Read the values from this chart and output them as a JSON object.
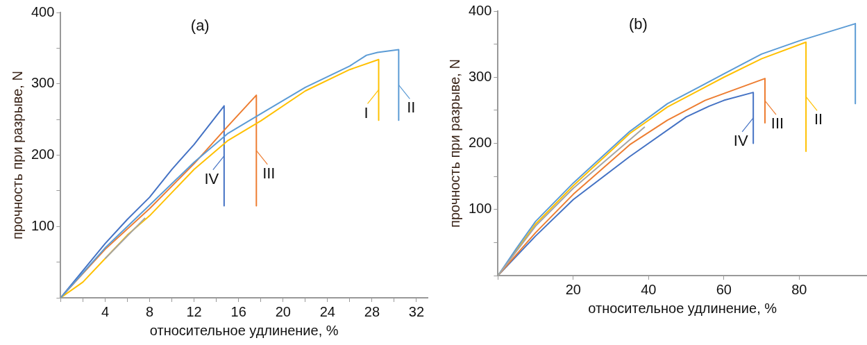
{
  "chart_data": [
    {
      "type": "line",
      "title": "(a)",
      "xlabel": "относительное удлинение, %",
      "ylabel": "прочность при разрыве, N",
      "xlim": [
        0,
        33
      ],
      "ylim": [
        0,
        400
      ],
      "xticks": [
        {
          "value": 0,
          "label": null
        },
        {
          "value": 2,
          "label": null
        },
        4,
        {
          "value": 6,
          "label": null
        },
        8,
        {
          "value": 10,
          "label": null
        },
        12,
        {
          "value": 14,
          "label": null
        },
        16,
        {
          "value": 18,
          "label": null
        },
        20,
        {
          "value": 22,
          "label": null
        },
        24,
        {
          "value": 26,
          "label": null
        },
        28,
        {
          "value": 30,
          "label": null
        },
        32
      ],
      "yticks": [
        {
          "value": 0,
          "label": null
        },
        {
          "value": 50,
          "label": null
        },
        100,
        {
          "value": 150,
          "label": null
        },
        200,
        {
          "value": 250,
          "label": null
        },
        300,
        {
          "value": 350,
          "label": null
        },
        400
      ],
      "grid": false,
      "legend": "right",
      "marker": "none",
      "line_style": "solid",
      "series": [
        {
          "name": "IV",
          "color": "#4472c4",
          "x": [
            0,
            2,
            4,
            6,
            8,
            10,
            12,
            14.7,
            14.7
          ],
          "values": [
            0,
            38,
            76,
            110,
            141,
            180,
            215,
            269,
            129
          ]
        },
        {
          "name": "III",
          "color": "#ed7d31",
          "x": [
            0,
            4,
            8,
            12,
            15,
            17.6,
            17.6
          ],
          "values": [
            0,
            68,
            125,
            188,
            240,
            284,
            129
          ]
        },
        {
          "name": "I",
          "color": "#ffc000",
          "x": [
            0,
            2,
            4,
            6,
            8,
            12,
            15,
            18,
            22,
            26,
            28.6,
            28.6
          ],
          "values": [
            0,
            22,
            55,
            88,
            115,
            180,
            220,
            248,
            290,
            320,
            334,
            249
          ]
        },
        {
          "name": "II",
          "color": "#5b9bd5",
          "x": [
            0,
            4,
            8,
            12,
            15,
            18,
            22,
            26,
            27.5,
            28.5,
            30.4,
            30.4
          ],
          "values": [
            0,
            70,
            130,
            190,
            230,
            258,
            295,
            325,
            340,
            344,
            348,
            249
          ]
        },
        {
          "color": "#a5a5a5",
          "x": [
            4,
            7.6
          ],
          "values": [
            55,
            112
          ]
        }
      ]
    },
    {
      "type": "line",
      "title": "(b)",
      "xlabel": "относительное удлинение, %",
      "ylabel": "прочность при разрыве, N",
      "xlim": [
        0,
        98
      ],
      "ylim": [
        0,
        400
      ],
      "xticks": [
        {
          "value": 0,
          "label": null
        },
        20,
        40,
        60,
        80
      ],
      "yticks": [
        {
          "value": 0,
          "label": null
        },
        {
          "value": 50,
          "label": null
        },
        100,
        {
          "value": 150,
          "label": null
        },
        200,
        {
          "value": 250,
          "label": null
        },
        300,
        {
          "value": 350,
          "label": null
        },
        400
      ],
      "grid": false,
      "legend": "right",
      "marker": "none",
      "line_style": "solid",
      "series": [
        {
          "name": "IV",
          "color": "#4472c4",
          "x": [
            0,
            10,
            20,
            35,
            50,
            56,
            60,
            67.8,
            67.8
          ],
          "values": [
            0,
            60,
            115,
            180,
            240,
            256,
            265,
            277,
            200
          ]
        },
        {
          "name": "III",
          "color": "#ed7d31",
          "x": [
            0,
            10,
            20,
            35,
            45,
            55,
            70.9,
            70.9
          ],
          "values": [
            0,
            65,
            123,
            198,
            235,
            265,
            298,
            231
          ]
        },
        {
          "name": "II",
          "color": "#ffc000",
          "x": [
            0,
            10,
            20,
            35,
            45,
            60,
            70,
            81.8,
            81.8
          ],
          "values": [
            0,
            78,
            136,
            215,
            255,
            300,
            328,
            353,
            188
          ]
        },
        {
          "color": "#5b9bd5",
          "x": [
            0,
            5,
            10,
            20,
            35,
            45,
            60,
            70,
            80,
            94.9,
            94.9
          ],
          "values": [
            0,
            42,
            82,
            140,
            218,
            260,
            305,
            335,
            355,
            381,
            260
          ]
        },
        {
          "color": "#a5a5a5",
          "x": [
            0,
            10,
            20,
            39
          ],
          "values": [
            0,
            75,
            132,
            225
          ]
        }
      ]
    }
  ]
}
